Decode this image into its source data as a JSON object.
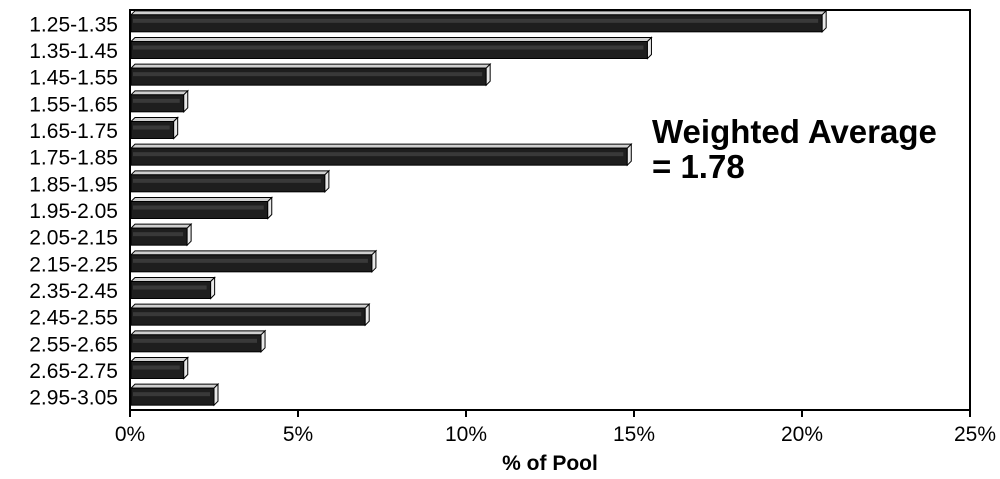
{
  "chart_data": {
    "type": "bar",
    "orientation": "horizontal",
    "categories": [
      "1.25-1.35",
      "1.35-1.45",
      "1.45-1.55",
      "1.55-1.65",
      "1.65-1.75",
      "1.75-1.85",
      "1.85-1.95",
      "1.95-2.05",
      "2.05-2.15",
      "2.15-2.25",
      "2.35-2.45",
      "2.45-2.55",
      "2.55-2.65",
      "2.65-2.75",
      "2.95-3.05"
    ],
    "values": [
      20.6,
      15.4,
      10.6,
      1.6,
      1.3,
      14.8,
      5.8,
      4.1,
      1.7,
      7.2,
      2.4,
      7.0,
      3.9,
      1.6,
      2.5
    ],
    "xlabel": "% of Pool",
    "xlim": [
      0,
      25
    ],
    "xticks": [
      "0%",
      "5%",
      "10%",
      "15%",
      "20%",
      "25%"
    ],
    "annotation": [
      "Weighted Average",
      "= 1.78"
    ],
    "grid": false,
    "colors": {
      "bar": "#1e1e1e",
      "bar_highlight": "#cfcfcf",
      "axis": "#000000"
    }
  }
}
